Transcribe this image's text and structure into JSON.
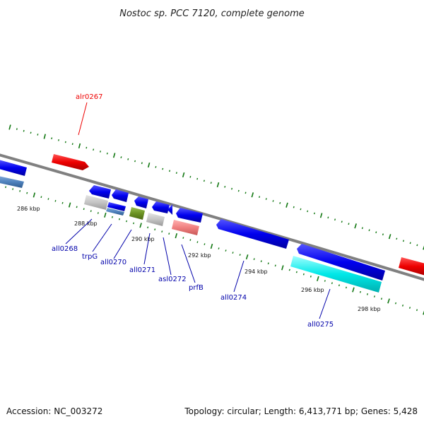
{
  "title": "Nostoc sp. PCC 7120, complete genome",
  "footer": {
    "accession": "Accession: NC_003272",
    "summary": "Topology: circular; Length: 6,413,771 bp; Genes: 5,428"
  },
  "scale_labels": [
    "286 kbp",
    "288 kbp",
    "290 kbp",
    "292 kbp",
    "294 kbp",
    "296 kbp",
    "298 kbp"
  ],
  "gene_labels": [
    {
      "text": "alr0267",
      "color": "#ee0000"
    },
    {
      "text": "all0268",
      "color": "#0000aa"
    },
    {
      "text": "trpG",
      "color": "#0000aa"
    },
    {
      "text": "all0270",
      "color": "#0000aa"
    },
    {
      "text": "all0271",
      "color": "#0000aa"
    },
    {
      "text": "asl0272",
      "color": "#0000aa"
    },
    {
      "text": "prfB",
      "color": "#0000aa"
    },
    {
      "text": "all0274",
      "color": "#0000aa"
    },
    {
      "text": "all0275",
      "color": "#0000aa"
    }
  ],
  "colors": {
    "backbone": "#808080",
    "tick": "#117711",
    "forward_cds": "#ee0000",
    "reverse_cds": "#0000ee",
    "label_line": "#0000aa"
  }
}
